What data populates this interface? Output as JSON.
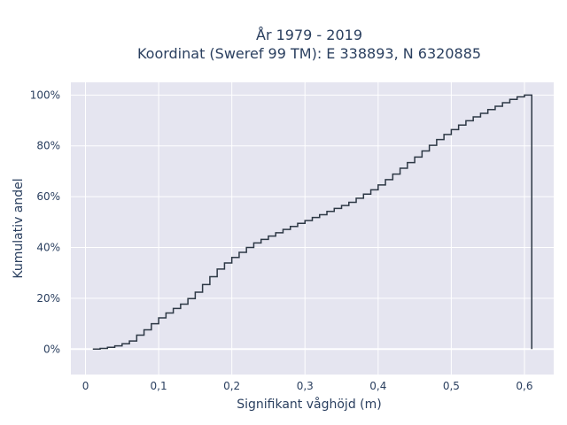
{
  "chart_data": {
    "type": "line",
    "subtype": "empirical-cdf-step",
    "title_lines": [
      "År 1979 - 2019",
      "Koordinat (Sweref 99 TM): E 338893, N 6320885"
    ],
    "xlabel": "Signifikant våghöjd (m)",
    "ylabel": "Kumulativ andel",
    "xlim": [
      -0.02,
      0.64
    ],
    "ylim": [
      -0.1,
      1.05
    ],
    "x_ticks": [
      0,
      0.1,
      0.2,
      0.3,
      0.4,
      0.5,
      0.6
    ],
    "x_tick_labels": [
      "0",
      "0,1",
      "0,2",
      "0,3",
      "0,4",
      "0,5",
      "0,6"
    ],
    "y_ticks": [
      0,
      0.2,
      0.4,
      0.6,
      0.8,
      1.0
    ],
    "y_tick_labels": [
      "0%",
      "20%",
      "40%",
      "60%",
      "80%",
      "100%"
    ],
    "grid": true,
    "colors": {
      "plot_bg": "#e5e5f0",
      "grid": "#ffffff",
      "line": "#2d3845"
    },
    "series": [
      {
        "x": [
          0.01,
          0.02,
          0.03,
          0.04,
          0.05,
          0.06,
          0.07,
          0.08,
          0.09,
          0.1,
          0.11,
          0.12,
          0.13,
          0.14,
          0.15,
          0.16,
          0.17,
          0.18,
          0.19,
          0.2,
          0.21,
          0.22,
          0.23,
          0.24,
          0.25,
          0.26,
          0.27,
          0.28,
          0.29,
          0.3,
          0.31,
          0.32,
          0.33,
          0.34,
          0.35,
          0.36,
          0.37,
          0.38,
          0.39,
          0.4,
          0.41,
          0.42,
          0.43,
          0.44,
          0.45,
          0.46,
          0.47,
          0.48,
          0.49,
          0.5,
          0.51,
          0.52,
          0.53,
          0.54,
          0.55,
          0.56,
          0.57,
          0.58,
          0.59,
          0.6,
          0.61
        ],
        "y": [
          0.0,
          0.003,
          0.007,
          0.013,
          0.021,
          0.032,
          0.055,
          0.076,
          0.1,
          0.123,
          0.142,
          0.16,
          0.177,
          0.199,
          0.224,
          0.254,
          0.285,
          0.315,
          0.339,
          0.361,
          0.381,
          0.4,
          0.418,
          0.432,
          0.445,
          0.458,
          0.471,
          0.483,
          0.495,
          0.506,
          0.518,
          0.529,
          0.542,
          0.554,
          0.565,
          0.578,
          0.594,
          0.61,
          0.627,
          0.646,
          0.667,
          0.689,
          0.712,
          0.734,
          0.756,
          0.78,
          0.802,
          0.825,
          0.845,
          0.864,
          0.882,
          0.899,
          0.914,
          0.928,
          0.943,
          0.956,
          0.97,
          0.983,
          0.993,
          1.0,
          0.0
        ]
      }
    ]
  }
}
